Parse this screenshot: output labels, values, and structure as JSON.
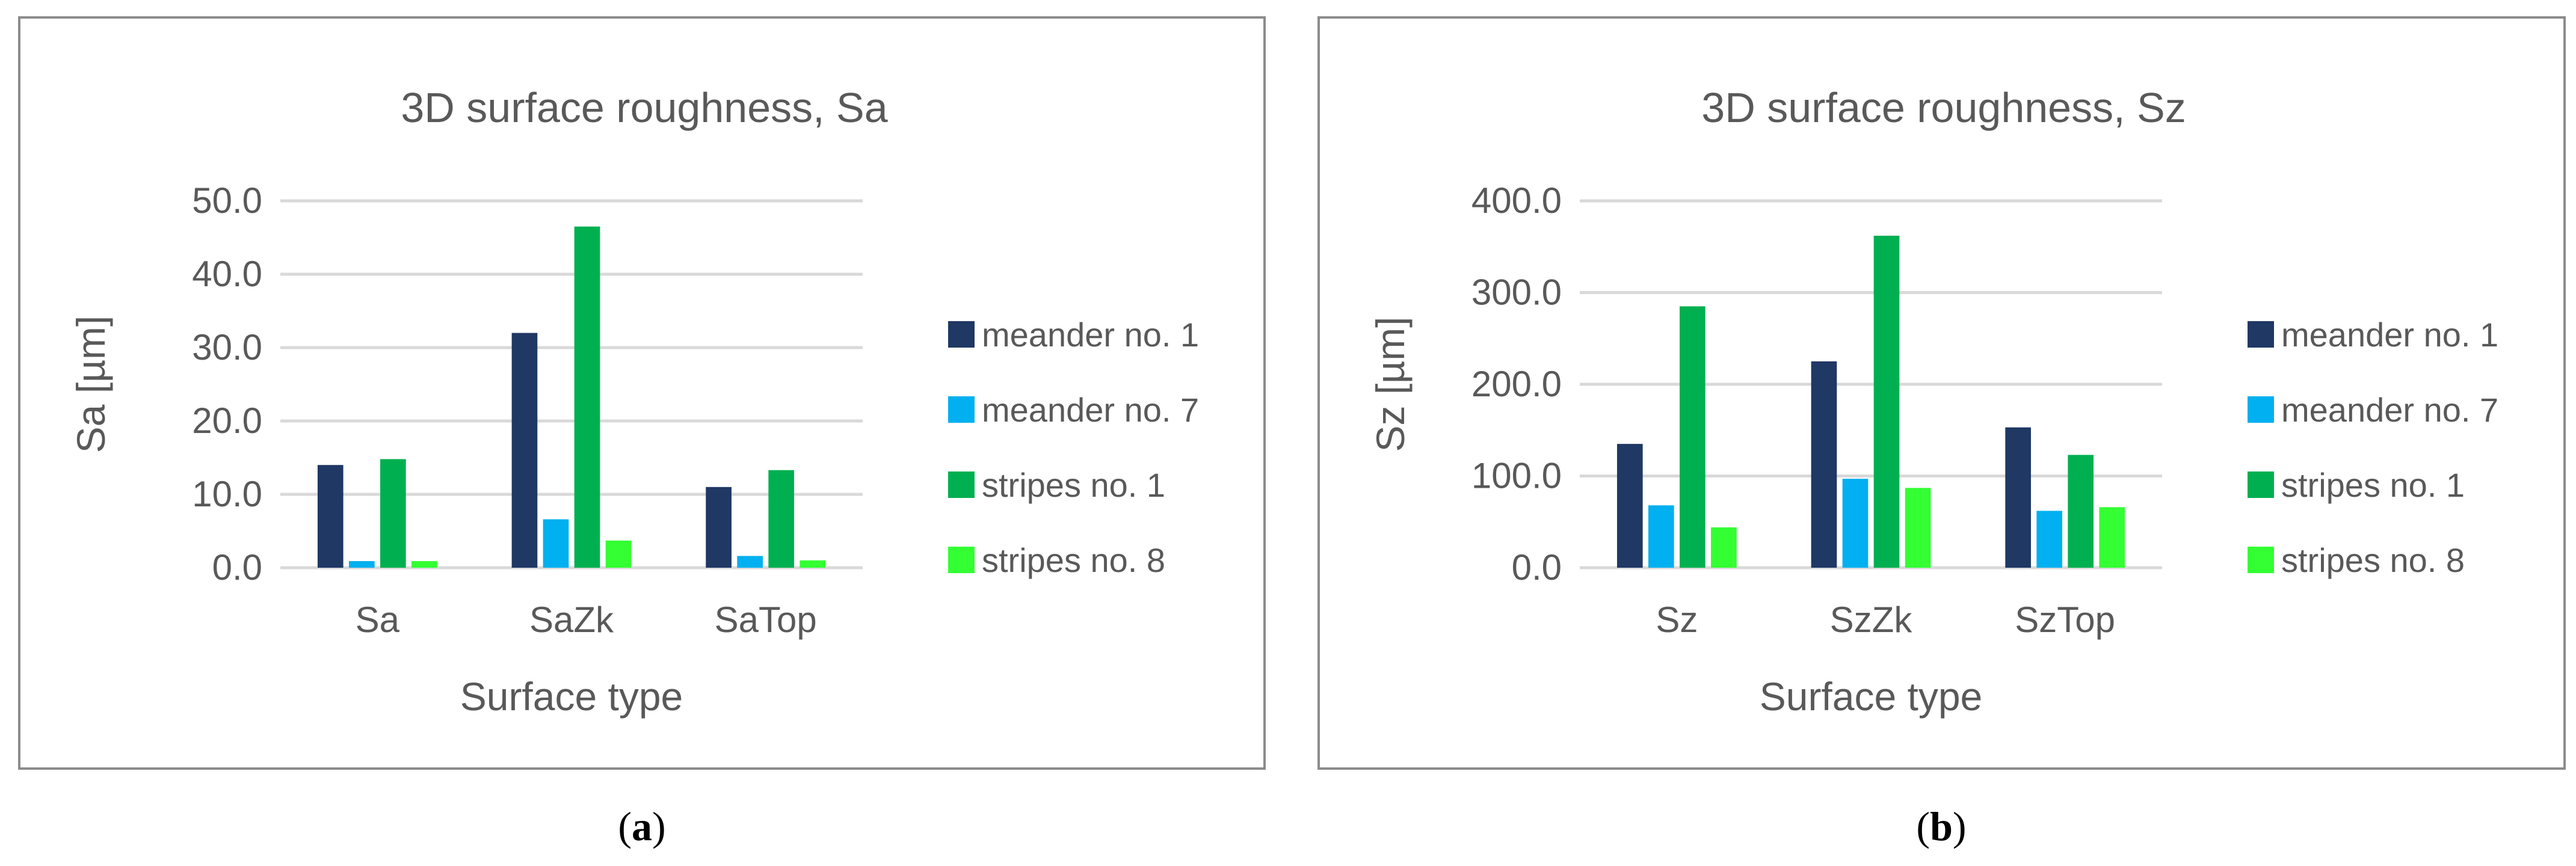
{
  "chart_data": [
    {
      "type": "bar",
      "title": "3D surface roughness, Sa",
      "xlabel": "Surface type",
      "ylabel": "Sa [µm]",
      "categories": [
        "Sa",
        "SaZk",
        "SaTop"
      ],
      "ylim": [
        0,
        50
      ],
      "yticks": [
        "0.0",
        "10.0",
        "20.0",
        "30.0",
        "40.0",
        "50.0"
      ],
      "grid": true,
      "legend_position": "right",
      "series": [
        {
          "name": "meander no. 1",
          "color": "#1f3864",
          "values": [
            14.0,
            32.0,
            11.0
          ]
        },
        {
          "name": "meander no. 7",
          "color": "#00b0f0",
          "values": [
            0.9,
            6.6,
            1.6
          ]
        },
        {
          "name": "stripes no. 1",
          "color": "#00b050",
          "values": [
            14.8,
            46.5,
            13.3
          ]
        },
        {
          "name": "stripes no. 8",
          "color": "#33ff33",
          "values": [
            0.9,
            3.7,
            1.0
          ]
        }
      ]
    },
    {
      "type": "bar",
      "title": "3D surface roughness, Sz",
      "xlabel": "Surface type",
      "ylabel": "Sz [µm]",
      "categories": [
        "Sz",
        "SzZk",
        "SzTop"
      ],
      "ylim": [
        0,
        400
      ],
      "yticks": [
        "0.0",
        "100.0",
        "200.0",
        "300.0",
        "400.0"
      ],
      "grid": true,
      "legend_position": "right",
      "series": [
        {
          "name": "meander no. 1",
          "color": "#1f3864",
          "values": [
            135,
            225,
            153
          ]
        },
        {
          "name": "meander no. 7",
          "color": "#00b0f0",
          "values": [
            68,
            97,
            62
          ]
        },
        {
          "name": "stripes no. 1",
          "color": "#00b050",
          "values": [
            285,
            362,
            123
          ]
        },
        {
          "name": "stripes no. 8",
          "color": "#33ff33",
          "values": [
            44,
            87,
            66
          ]
        }
      ]
    }
  ],
  "captions": {
    "a": "a",
    "b": "b"
  }
}
